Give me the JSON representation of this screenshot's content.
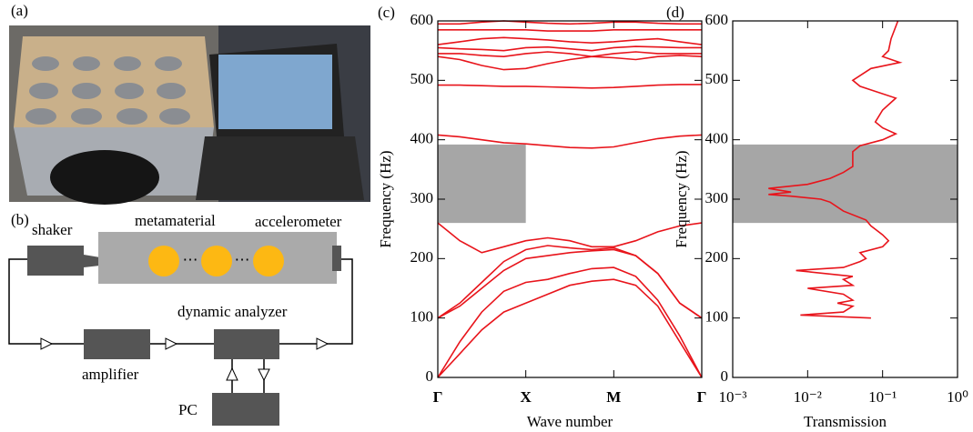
{
  "panels": {
    "a": "(a)",
    "b": "(b)"
  },
  "diagram": {
    "shaker": "shaker",
    "metamaterial": "metamaterial",
    "accelerometer": "accelerometer",
    "analyzer": "dynamic analyzer",
    "amplifier": "amplifier",
    "pc": "PC"
  },
  "chart_data": [
    {
      "type": "line",
      "label": "(c)",
      "xlabel": "Wave number",
      "ylabel": "Frequency (Hz)",
      "color": "#e8141b",
      "xlim": [
        0,
        3
      ],
      "ylim": [
        0,
        600
      ],
      "xticks": [
        {
          "value": 0,
          "label": "Γ"
        },
        {
          "value": 1,
          "label": "X"
        },
        {
          "value": 2,
          "label": "M"
        },
        {
          "value": 3,
          "label": "Γ"
        }
      ],
      "yticks": [
        0,
        100,
        200,
        300,
        400,
        500,
        600
      ],
      "bandgap": [
        260,
        392
      ],
      "bandgap_x": [
        0,
        1
      ],
      "x": [
        0,
        0.25,
        0.5,
        0.75,
        1,
        1.25,
        1.5,
        1.75,
        2,
        2.25,
        2.5,
        2.75,
        3
      ],
      "series": [
        {
          "values": [
            0,
            40,
            80,
            110,
            125,
            140,
            155,
            162,
            165,
            155,
            120,
            60,
            0
          ]
        },
        {
          "values": [
            0,
            60,
            110,
            145,
            160,
            165,
            175,
            183,
            185,
            170,
            130,
            70,
            0
          ]
        },
        {
          "values": [
            100,
            120,
            150,
            180,
            200,
            205,
            210,
            213,
            215,
            205,
            175,
            125,
            100
          ]
        },
        {
          "values": [
            100,
            125,
            160,
            195,
            215,
            222,
            218,
            215,
            218,
            205,
            175,
            125,
            100
          ]
        },
        {
          "values": [
            260,
            230,
            210,
            220,
            230,
            235,
            230,
            220,
            220,
            230,
            245,
            255,
            260
          ]
        },
        {
          "values": [
            408,
            405,
            400,
            395,
            393,
            390,
            387,
            386,
            388,
            395,
            402,
            406,
            408
          ]
        },
        {
          "values": [
            492,
            492,
            491,
            490,
            490,
            489,
            488,
            487,
            488,
            490,
            492,
            493,
            493
          ]
        },
        {
          "values": [
            540,
            535,
            525,
            518,
            520,
            528,
            535,
            540,
            538,
            535,
            540,
            542,
            540
          ]
        },
        {
          "values": [
            545,
            545,
            542,
            540,
            545,
            548,
            545,
            540,
            545,
            548,
            545,
            545,
            545
          ]
        },
        {
          "values": [
            555,
            553,
            552,
            550,
            555,
            556,
            553,
            550,
            555,
            557,
            556,
            555,
            555
          ]
        },
        {
          "values": [
            560,
            565,
            570,
            572,
            570,
            568,
            565,
            563,
            565,
            568,
            570,
            565,
            560
          ]
        },
        {
          "values": [
            585,
            585,
            585,
            585,
            585,
            583,
            583,
            583,
            585,
            585,
            585,
            585,
            585
          ]
        },
        {
          "values": [
            595,
            595,
            598,
            600,
            598,
            596,
            595,
            596,
            598,
            598,
            596,
            595,
            595
          ]
        }
      ]
    },
    {
      "type": "line",
      "label": "(d)",
      "xlabel": "Transmission",
      "ylabel": "Frequency (Hz)",
      "color": "#e8141b",
      "xscale": "log",
      "xlim": [
        0.001,
        1
      ],
      "ylim": [
        0,
        600
      ],
      "xticks": [
        {
          "value": 0.001,
          "label": "10⁻³"
        },
        {
          "value": 0.01,
          "label": "10⁻²"
        },
        {
          "value": 0.1,
          "label": "10⁻¹"
        },
        {
          "value": 1,
          "label": "10⁰"
        }
      ],
      "yticks": [
        0,
        100,
        200,
        300,
        400,
        500,
        600
      ],
      "bandgap": [
        260,
        392
      ],
      "x": [
        0.07,
        0.008,
        0.03,
        0.04,
        0.025,
        0.04,
        0.03,
        0.01,
        0.04,
        0.03,
        0.04,
        0.007,
        0.03,
        0.05,
        0.06,
        0.05,
        0.1,
        0.12,
        0.1,
        0.07,
        0.06,
        0.03,
        0.02,
        0.015,
        0.006,
        0.003,
        0.006,
        0.003,
        0.01,
        0.02,
        0.03,
        0.04,
        0.04,
        0.04,
        0.05,
        0.1,
        0.15,
        0.1,
        0.08,
        0.1,
        0.15,
        0.05,
        0.04,
        0.07,
        0.17,
        0.1,
        0.12,
        0.13,
        0.16
      ],
      "series": [
        {
          "values": [
            100,
            105,
            110,
            120,
            125,
            130,
            140,
            150,
            155,
            165,
            170,
            180,
            185,
            195,
            200,
            210,
            220,
            230,
            240,
            255,
            265,
            280,
            295,
            300,
            305,
            308,
            312,
            318,
            325,
            335,
            345,
            355,
            365,
            380,
            390,
            400,
            410,
            420,
            430,
            450,
            470,
            490,
            500,
            520,
            530,
            540,
            550,
            570,
            600
          ]
        }
      ]
    }
  ]
}
